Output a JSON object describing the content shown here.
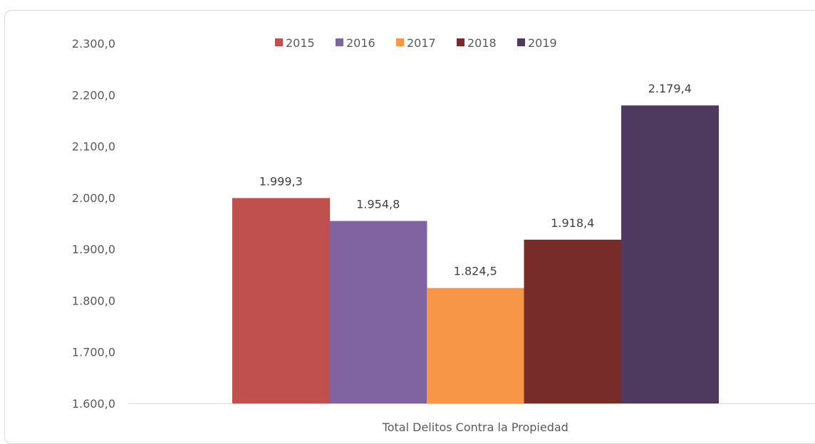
{
  "chart_data": {
    "type": "bar",
    "categories": [
      "Total Delitos Contra la Propiedad"
    ],
    "series": [
      {
        "name": "2015",
        "values": [
          1999.3
        ],
        "label": "1.999,3",
        "color": "#c0504d"
      },
      {
        "name": "2016",
        "values": [
          1954.8
        ],
        "label": "1.954,8",
        "color": "#8064a2"
      },
      {
        "name": "2017",
        "values": [
          1824.5
        ],
        "label": "1.824,5",
        "color": "#f79646"
      },
      {
        "name": "2018",
        "values": [
          1918.4
        ],
        "label": "1.918,4",
        "color": "#772c2a"
      },
      {
        "name": "2019",
        "values": [
          2179.4
        ],
        "label": "2.179,4",
        "color": "#4f3a5f"
      }
    ],
    "ylim": [
      1600,
      2300
    ],
    "yticks": [
      1600,
      1700,
      1800,
      1900,
      2000,
      2100,
      2200,
      2300
    ],
    "ytick_labels": [
      "1.600,0",
      "1.700,0",
      "1.800,0",
      "1.900,0",
      "2.000,0",
      "2.100,0",
      "2.200,0",
      "2.300,0"
    ],
    "xlabel": "",
    "ylabel": "",
    "title": "",
    "grid": false,
    "legend_position": "top"
  }
}
